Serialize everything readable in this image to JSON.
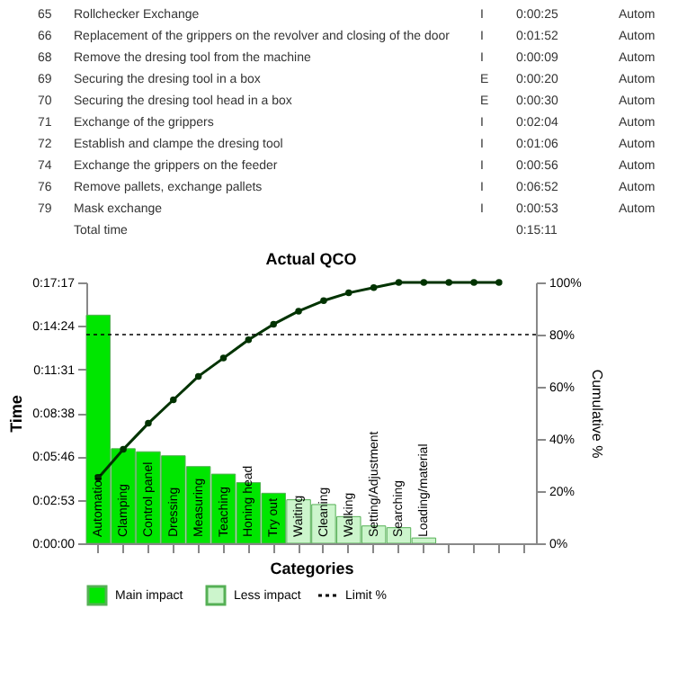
{
  "chart_data": [
    {
      "type": "other",
      "annotations": [
        "65",
        "Rollchecker Exchange",
        "I",
        "0:00:25",
        "Autom",
        "66",
        "Replacement of the grippers on the revolver and closing of the door",
        "I",
        "0:01:52",
        "Autom",
        "68",
        "Remove the dresing tool from the machine",
        "I",
        "0:00:09",
        "Autom",
        "69",
        "Securing the dresing tool in a box",
        "E",
        "0:00:20",
        "Autom",
        "70",
        "Securing the dresing tool head in a box",
        "E",
        "0:00:30",
        "Autom",
        "71",
        "Exchange of the grippers",
        "I",
        "0:02:04",
        "Autom",
        "72",
        "Establish and clampe the dresing tool",
        "I",
        "0:01:06",
        "Autom",
        "74",
        "Exchange the grippers on the feeder",
        "I",
        "0:00:56",
        "Autom",
        "76",
        "Remove pallets, exchange pallets",
        "I",
        "0:06:52",
        "Autom",
        "79",
        "Mask exchange",
        "I",
        "0:00:53",
        "Autom",
        "Total time",
        "0:15:11"
      ]
    },
    {
      "type": "bar",
      "title": "Actual QCO",
      "xlabel": "Categories",
      "ylabel": "Time",
      "y2label": "Cumulative %",
      "categories": [
        "Automation",
        "Clamping",
        "Control panel",
        "Dressing",
        "Measuring",
        "Teaching",
        "Honing head",
        "Try out",
        "Waiting",
        "Cleaning",
        "Walking",
        "Setting/Adjustment",
        "Searching",
        "Loading/material",
        null,
        null,
        null,
        null
      ],
      "series": [
        {
          "name": "Main impact",
          "color": "#00e600",
          "values": [
            907,
            376,
            364,
            348,
            305,
            275,
            241,
            199,
            null,
            null,
            null,
            null,
            null,
            null,
            null,
            null,
            null,
            null
          ]
        },
        {
          "name": "Less impact",
          "color": "#ccf5cc",
          "values": [
            null,
            null,
            null,
            null,
            null,
            null,
            null,
            null,
            173,
            154,
            106,
            69,
            62,
            21,
            null,
            null,
            null,
            null
          ]
        },
        {
          "type": "line",
          "axis": "y2",
          "color": "#003300",
          "values": [
            25,
            36,
            46,
            55,
            64,
            71,
            78,
            84,
            89,
            93,
            96,
            98,
            100,
            100,
            100,
            100,
            100,
            null
          ]
        }
      ],
      "ylim": [
        0,
        1037
      ],
      "yticks": [
        {
          "value": 0,
          "label": "0:00:00"
        },
        {
          "value": 173,
          "label": "0:02:53"
        },
        {
          "value": 346,
          "label": "0:05:46"
        },
        {
          "value": 518,
          "label": "0:08:38"
        },
        {
          "value": 691,
          "label": "0:11:31"
        },
        {
          "value": 864,
          "label": "0:14:24"
        },
        {
          "value": 1037,
          "label": "0:17:17"
        }
      ],
      "y2lim": [
        0,
        100
      ],
      "y2ticks": [
        {
          "value": 0,
          "label": "0%"
        },
        {
          "value": 20,
          "label": "20%"
        },
        {
          "value": 40,
          "label": "40%"
        },
        {
          "value": 60,
          "label": "60%"
        },
        {
          "value": 80,
          "label": "80%"
        },
        {
          "value": 100,
          "label": "100%"
        }
      ],
      "ref_lines": [
        {
          "axis": "y2",
          "value": 80,
          "label": "Limit  %",
          "color": "#000000",
          "line_style": "dotted"
        }
      ],
      "marker": "circle",
      "legend": "bottom",
      "grid": false
    }
  ]
}
